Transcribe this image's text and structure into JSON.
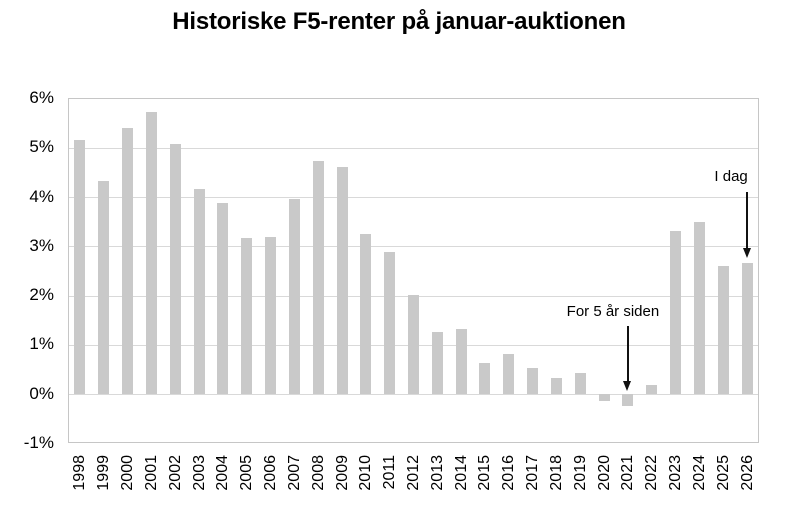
{
  "chart_data": {
    "type": "bar",
    "title": "Historiske F5-renter på januar-auktionen",
    "categories": [
      "1998",
      "1999",
      "2000",
      "2001",
      "2002",
      "2003",
      "2004",
      "2005",
      "2006",
      "2007",
      "2008",
      "2009",
      "2010",
      "2011",
      "2012",
      "2013",
      "2014",
      "2015",
      "2016",
      "2017",
      "2018",
      "2019",
      "2020",
      "2021",
      "2022",
      "2023",
      "2024",
      "2025",
      "2026"
    ],
    "values": [
      5.15,
      4.32,
      5.4,
      5.72,
      5.07,
      4.15,
      3.87,
      3.15,
      3.17,
      3.95,
      4.72,
      4.6,
      3.25,
      2.87,
      2.0,
      1.26,
      1.32,
      0.63,
      0.81,
      0.53,
      0.31,
      0.42,
      -0.15,
      -0.24,
      0.17,
      3.31,
      3.49,
      2.59,
      2.65
    ],
    "unit": "%",
    "xlabel": "",
    "ylabel": "",
    "ylim": [
      -1,
      6
    ],
    "y_ticks": [
      "6%",
      "5%",
      "4%",
      "3%",
      "2%",
      "1%",
      "0%",
      "-1%"
    ],
    "grid": "horizontal",
    "legend": "none",
    "bar_color": "#c9c9c9",
    "gridline_color": "#d9d9d9",
    "annotations": [
      {
        "text": "I dag",
        "target_category": "2026"
      },
      {
        "text": "For 5 år siden",
        "target_category": "2021"
      }
    ]
  }
}
